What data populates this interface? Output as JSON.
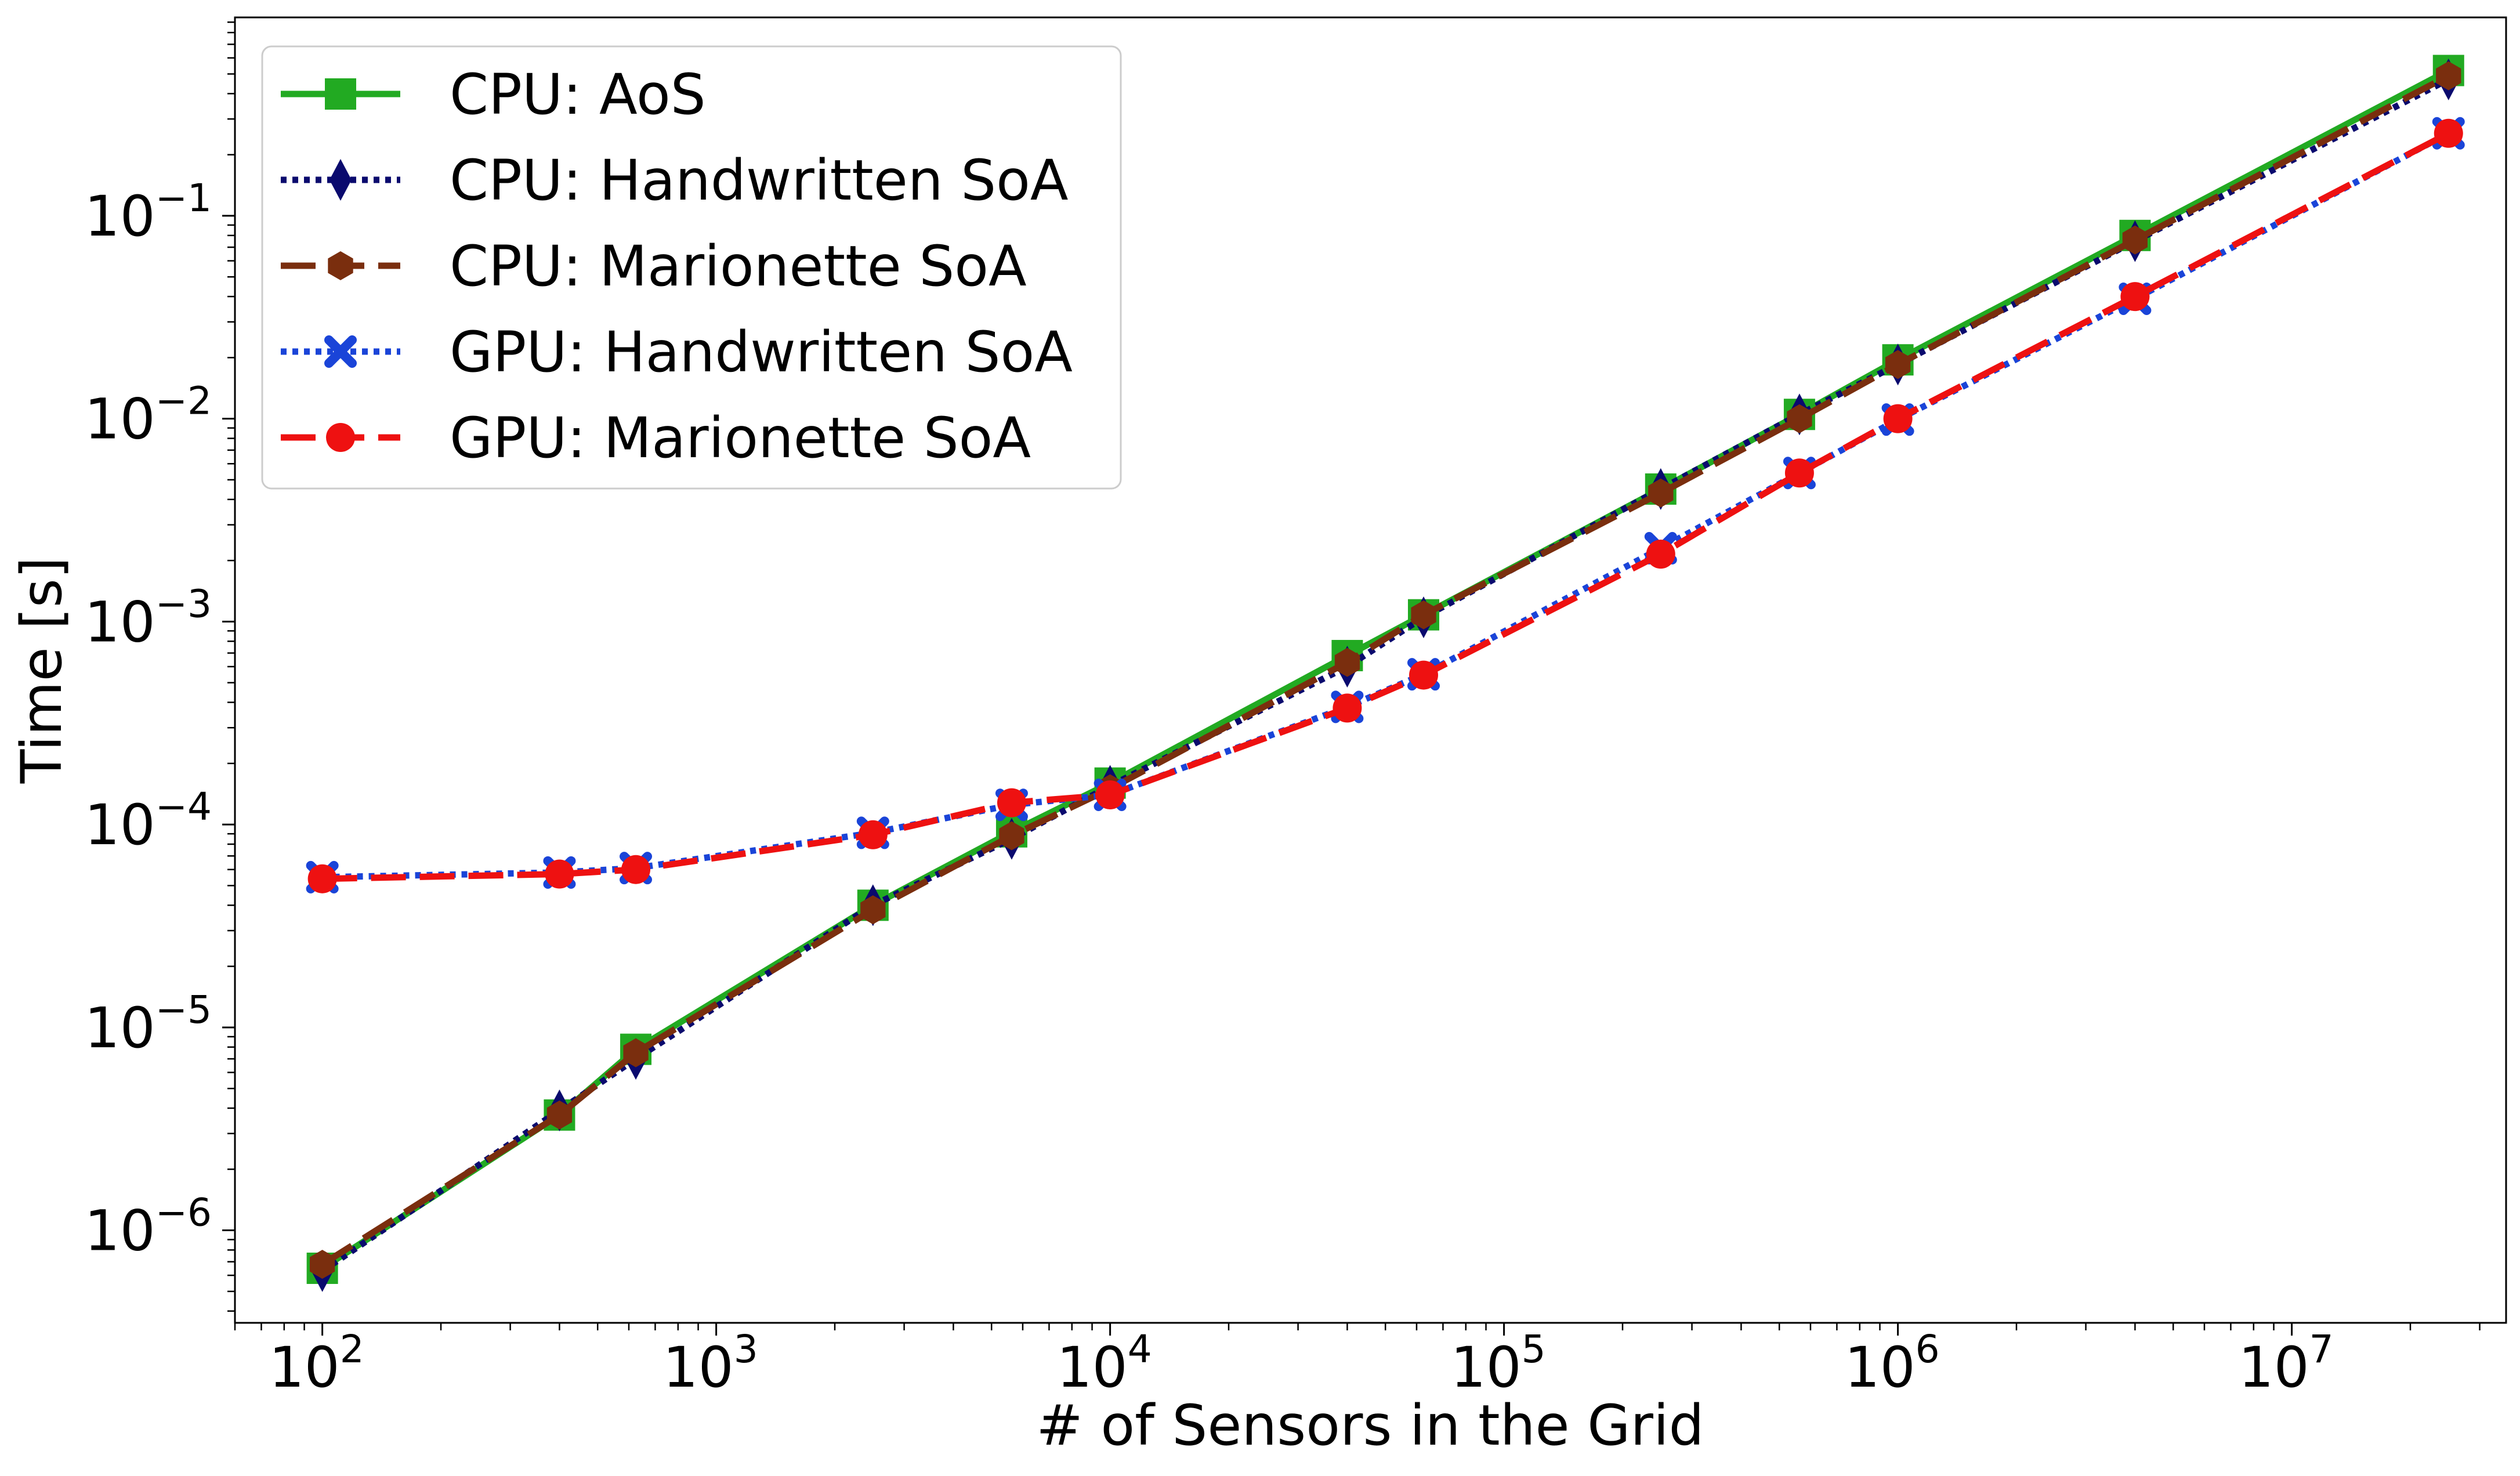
{
  "chart_data": {
    "type": "line",
    "title": "",
    "xlabel": "# of Sensors in the Grid",
    "ylabel": "Time [s]",
    "xscale": "log",
    "yscale": "log",
    "xlim": [
      60,
      35000000
    ],
    "ylim": [
      3.5e-07,
      0.95
    ],
    "x_ticks": [
      {
        "base": "10",
        "exp": "2"
      },
      {
        "base": "10",
        "exp": "3"
      },
      {
        "base": "10",
        "exp": "4"
      },
      {
        "base": "10",
        "exp": "5"
      },
      {
        "base": "10",
        "exp": "6"
      },
      {
        "base": "10",
        "exp": "7"
      }
    ],
    "y_ticks": [
      {
        "base": "10",
        "exp": "−6"
      },
      {
        "base": "10",
        "exp": "−5"
      },
      {
        "base": "10",
        "exp": "−4"
      },
      {
        "base": "10",
        "exp": "−3"
      },
      {
        "base": "10",
        "exp": "−2"
      },
      {
        "base": "10",
        "exp": "−1"
      }
    ],
    "grid": false,
    "legend_position": "top-left",
    "x": [
      100,
      400,
      625,
      2500,
      5625,
      10000,
      40000,
      62500,
      250000,
      562500,
      1000000,
      4000000,
      25000000
    ],
    "series": [
      {
        "name": "CPU: AoS",
        "color": "#22aa22",
        "marker": "square",
        "linestyle": "solid",
        "values": [
          6.5e-07,
          3.7e-06,
          7.8e-06,
          4e-05,
          9.2e-05,
          0.00016,
          0.00068,
          0.00108,
          0.0045,
          0.0105,
          0.0195,
          0.08,
          0.52
        ]
      },
      {
        "name": "CPU: Handwritten SoA",
        "color": "#0a0a6e",
        "marker": "thin_diamond",
        "linestyle": "dotted",
        "values": [
          6.3e-07,
          3.9e-06,
          7e-06,
          4e-05,
          8.5e-05,
          0.000155,
          0.0006,
          0.00105,
          0.0045,
          0.0105,
          0.0185,
          0.075,
          0.47
        ]
      },
      {
        "name": "CPU: Marionette SoA",
        "color": "#7a2e0e",
        "marker": "hexagon",
        "linestyle": "dashed",
        "values": [
          6.8e-07,
          3.7e-06,
          7.5e-06,
          3.8e-05,
          8.8e-05,
          0.00015,
          0.00063,
          0.00108,
          0.0043,
          0.01,
          0.0185,
          0.076,
          0.49
        ]
      },
      {
        "name": "GPU: Handwritten SoA",
        "color": "#1a44d8",
        "marker": "x",
        "linestyle": "dotted",
        "values": [
          5.5e-05,
          5.8e-05,
          6.1e-05,
          9.1e-05,
          0.000125,
          0.00014,
          0.00038,
          0.00055,
          0.0023,
          0.0054,
          0.0099,
          0.039,
          0.255
        ]
      },
      {
        "name": "GPU: Marionette SoA",
        "color": "#ee1111",
        "marker": "circle",
        "linestyle": "dashed",
        "values": [
          5.4e-05,
          5.7e-05,
          6e-05,
          8.9e-05,
          0.000128,
          0.00014,
          0.000375,
          0.000545,
          0.00215,
          0.0054,
          0.01,
          0.04,
          0.255
        ]
      }
    ]
  }
}
